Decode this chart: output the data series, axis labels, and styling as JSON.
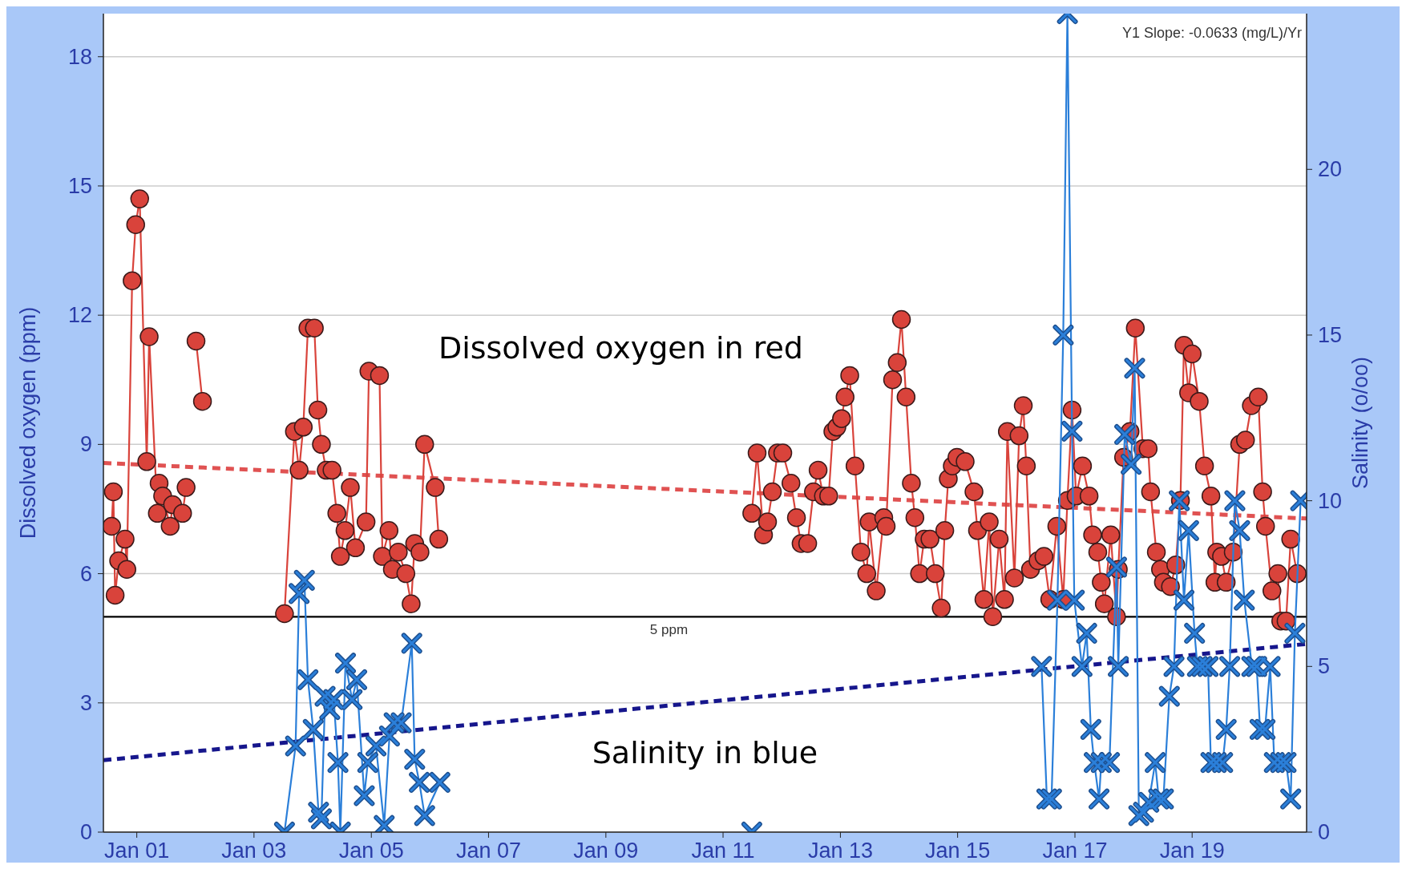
{
  "chart_data": {
    "type": "line",
    "ylabel": "Dissolved oxygen (ppm)",
    "y2label": "Salinity (o/oo)",
    "annotations": [
      "Y1 Slope: -0.0633 (mg/L)/Yr",
      "Dissolved oxygen in red",
      "Salinity in blue"
    ],
    "xlim": [
      "2000-06-07",
      "2020-12-14"
    ],
    "xticks": [
      {
        "value": "2001-01-01",
        "label": "Jan 01"
      },
      {
        "value": "2003-01-01",
        "label": "Jan 03"
      },
      {
        "value": "2005-01-01",
        "label": "Jan 05"
      },
      {
        "value": "2007-01-01",
        "label": "Jan 07"
      },
      {
        "value": "2009-01-01",
        "label": "Jan 09"
      },
      {
        "value": "2011-01-01",
        "label": "Jan 11"
      },
      {
        "value": "2013-01-01",
        "label": "Jan 13"
      },
      {
        "value": "2015-01-01",
        "label": "Jan 15"
      },
      {
        "value": "2017-01-01",
        "label": "Jan 17"
      },
      {
        "value": "2019-01-01",
        "label": "Jan 19"
      }
    ],
    "ylim": [
      0,
      19
    ],
    "yticks": [
      0,
      3,
      6,
      9,
      12,
      15,
      18
    ],
    "y2lim": [
      0,
      24.7
    ],
    "y2ticks": [
      0,
      5,
      10,
      15,
      20
    ],
    "grid": "y",
    "ref_lines": [
      {
        "axis": "y",
        "value": 5,
        "label": "5 ppm",
        "color": "#000000"
      }
    ],
    "series": [
      {
        "color": "#d9433b",
        "marker": "circle",
        "line_style": "solid",
        "x": [
          "2000-07-28",
          "2000-08-08",
          "2000-08-19",
          "2000-09-10",
          "2000-10-20",
          "2000-10-31",
          "2000-12-03",
          "2000-12-25",
          "2001-01-19",
          "2001-03-04",
          "2001-03-19",
          "2001-05-09",
          "2001-05-20",
          "2001-06-11",
          "2001-07-28",
          "2001-08-12",
          "2001-10-13",
          "2001-11-04",
          "2001-12-06",
          "2002-01-05",
          "2002-02-14",
          "2002-10-20",
          "2003-07-10",
          "2003-09-10",
          "2003-10-09",
          "2003-11-04",
          "2003-12-03",
          "2004-01-12",
          "2004-02-03",
          "2004-02-25",
          "2004-03-26",
          "2004-05-01",
          "2004-05-31",
          "2004-06-22",
          "2004-07-21",
          "2004-08-23",
          "2004-09-24",
          "2004-11-29",
          "2004-12-17",
          "2005-02-21",
          "2005-03-11",
          "2005-04-21",
          "2005-05-12",
          "2005-06-18",
          "2005-08-04",
          "2005-09-06",
          "2005-09-28",
          "2005-10-31",
          "2005-11-29",
          "2006-02-03",
          "2006-02-25",
          "2009-01-01",
          "2011-06-29",
          "2011-08-01",
          "2011-09-10",
          "2011-10-05",
          "2011-11-04",
          "2011-12-06",
          "2012-01-08",
          "2012-02-28",
          "2012-04-02",
          "2012-05-01",
          "2012-06-11",
          "2012-07-17",
          "2012-08-15",
          "2012-09-17",
          "2012-10-20",
          "2012-11-15",
          "2012-12-10",
          "2013-01-08",
          "2013-01-30",
          "2013-02-28",
          "2013-04-02",
          "2013-05-09",
          "2013-06-14",
          "2013-06-29",
          "2013-08-12",
          "2013-09-28",
          "2013-10-13",
          "2013-11-22",
          "2013-12-21",
          "2014-01-16",
          "2014-02-14",
          "2014-03-19",
          "2014-04-10",
          "2014-05-09",
          "2014-06-07",
          "2014-07-13",
          "2014-08-15",
          "2014-09-21",
          "2014-10-13",
          "2014-11-04",
          "2014-11-29",
          "2014-12-28",
          "2015-02-17",
          "2015-04-13",
          "2015-05-05",
          "2015-06-14",
          "2015-07-17",
          "2015-08-08",
          "2015-09-17",
          "2015-10-20",
          "2015-11-07",
          "2015-12-21",
          "2016-01-19",
          "2016-02-14",
          "2016-03-04",
          "2016-03-30",
          "2016-05-16",
          "2016-06-22",
          "2016-07-28",
          "2016-09-10",
          "2016-10-20",
          "2016-11-15",
          "2016-12-14",
          "2017-01-08",
          "2017-02-17",
          "2017-03-30",
          "2017-04-21",
          "2017-05-23",
          "2017-06-14",
          "2017-07-03",
          "2017-08-12",
          "2017-09-17",
          "2017-09-28",
          "2017-10-31",
          "2017-12-10",
          "2018-01-12",
          "2018-02-28",
          "2018-04-02",
          "2018-04-17",
          "2018-05-23",
          "2018-06-18",
          "2018-07-06",
          "2018-08-19",
          "2018-09-21",
          "2018-10-20",
          "2018-11-11",
          "2018-12-10",
          "2019-01-01",
          "2019-02-14",
          "2019-03-19",
          "2019-04-28",
          "2019-05-23",
          "2019-06-03",
          "2019-07-03",
          "2019-08-01",
          "2019-09-14",
          "2019-10-24",
          "2019-11-29",
          "2020-01-05",
          "2020-02-17",
          "2020-03-15",
          "2020-04-02",
          "2020-05-12",
          "2020-06-18",
          "2020-07-06",
          "2020-08-08",
          "2020-09-06",
          "2020-10-16"
        ],
        "values": [
          7.1,
          7.9,
          5.5,
          6.3,
          6.8,
          6.1,
          12.8,
          14.1,
          14.7,
          8.6,
          11.5,
          7.4,
          8.1,
          7.8,
          7.1,
          7.6,
          7.4,
          8.0,
          null,
          11.4,
          10.0,
          null,
          5.07,
          9.3,
          8.4,
          9.4,
          11.7,
          11.7,
          9.8,
          9.0,
          8.4,
          8.4,
          7.4,
          6.4,
          7.0,
          8.0,
          6.6,
          7.2,
          10.7,
          10.6,
          6.4,
          7.0,
          6.1,
          6.5,
          6.0,
          5.3,
          6.7,
          6.5,
          9.0,
          8.0,
          6.8,
          null,
          7.4,
          8.8,
          6.9,
          7.2,
          7.9,
          8.8,
          8.8,
          8.1,
          7.3,
          6.7,
          6.7,
          7.9,
          8.4,
          7.8,
          7.8,
          9.3,
          9.4,
          9.6,
          10.1,
          10.6,
          8.5,
          6.5,
          6.0,
          7.2,
          5.6,
          7.3,
          7.1,
          10.5,
          10.9,
          11.9,
          10.1,
          8.1,
          7.3,
          6.0,
          6.8,
          6.8,
          6.0,
          5.2,
          7.0,
          8.2,
          8.5,
          8.7,
          8.6,
          7.9,
          7.0,
          5.4,
          7.2,
          5.0,
          6.8,
          5.4,
          9.3,
          5.9,
          9.2,
          9.9,
          8.5,
          6.1,
          6.3,
          6.4,
          5.4,
          7.1,
          5.4,
          7.7,
          9.8,
          7.8,
          8.5,
          7.8,
          6.9,
          6.5,
          5.8,
          5.3,
          6.9,
          5.0,
          6.1,
          8.7,
          9.3,
          11.7,
          8.9,
          8.9,
          7.9,
          6.5,
          6.1,
          5.8,
          5.7,
          6.2,
          7.7,
          11.3,
          10.2,
          11.1,
          10.0,
          8.5,
          7.8,
          5.8,
          6.5,
          6.4,
          5.8,
          6.5,
          9.0,
          9.1,
          9.9,
          10.1,
          7.9,
          7.1,
          5.6,
          6.0,
          4.9,
          4.9,
          6.8,
          6.0
        ]
      },
      {
        "axis": "y2",
        "color": "#2b7fd9",
        "marker": "cross",
        "line_style": "solid",
        "x": [
          "2003-07-10",
          "2003-09-17",
          "2003-10-09",
          "2003-11-11",
          "2003-12-03",
          "2004-01-05",
          "2004-02-07",
          "2004-02-25",
          "2004-03-19",
          "2004-04-17",
          "2004-05-12",
          "2004-06-07",
          "2004-06-22",
          "2004-07-24",
          "2004-09-03",
          "2004-10-02",
          "2004-11-18",
          "2004-12-10",
          "2005-01-30",
          "2005-03-22",
          "2005-04-24",
          "2005-05-23",
          "2005-07-06",
          "2005-09-10",
          "2005-09-28",
          "2005-10-27",
          "2005-11-29",
          "2006-03-04",
          "2009-01-01",
          "2011-06-29",
          "2014-01-01",
          "2016-06-07",
          "2016-07-10",
          "2016-08-08",
          "2016-09-14",
          "2016-10-20",
          "2016-11-15",
          "2016-12-14",
          "2016-12-28",
          "2017-02-14",
          "2017-03-15",
          "2017-04-10",
          "2017-05-01",
          "2017-05-31",
          "2017-06-14",
          "2017-08-04",
          "2017-09-17",
          "2017-09-28",
          "2017-11-07",
          "2017-12-17",
          "2018-01-08",
          "2018-02-03",
          "2018-03-04",
          "2018-04-06",
          "2018-05-16",
          "2018-06-07",
          "2018-07-06",
          "2018-08-12",
          "2018-09-10",
          "2018-10-13",
          "2018-11-11",
          "2018-12-10",
          "2019-01-16",
          "2019-02-03",
          "2019-03-04",
          "2019-04-10",
          "2019-04-28",
          "2019-05-31",
          "2019-07-10",
          "2019-08-01",
          "2019-08-23",
          "2019-09-24",
          "2019-10-24",
          "2019-11-22",
          "2020-01-08",
          "2020-02-07",
          "2020-02-28",
          "2020-03-30",
          "2020-05-01",
          "2020-05-27",
          "2020-07-06",
          "2020-08-08",
          "2020-09-06",
          "2020-10-02",
          "2020-11-07"
        ],
        "values": [
          0,
          2.6,
          7.2,
          7.6,
          4.6,
          3.1,
          0.6,
          0.4,
          4.1,
          3.7,
          4.0,
          2.1,
          0,
          5.1,
          4.0,
          4.6,
          1.1,
          2.1,
          2.6,
          0.2,
          2.9,
          3.3,
          3.3,
          5.7,
          2.2,
          1.5,
          0.5,
          1.5,
          null,
          0,
          null,
          5.0,
          1.0,
          1.0,
          7.0,
          15.0,
          24.7,
          12.1,
          7.0,
          5.0,
          6.0,
          3.1,
          2.1,
          1.0,
          2.1,
          2.1,
          8.0,
          5.0,
          12.0,
          11.1,
          14.0,
          0.5,
          0.6,
          0.9,
          2.1,
          1.0,
          1.0,
          4.1,
          5.0,
          10.0,
          7.0,
          9.1,
          6.0,
          5.0,
          5.0,
          5.0,
          2.1,
          2.1,
          2.1,
          3.1,
          5.0,
          10.0,
          9.1,
          7.0,
          5.0,
          5.0,
          3.1,
          3.1,
          5.0,
          2.1,
          2.1,
          2.1,
          1.0,
          6.0,
          10.0
        ]
      },
      {
        "color": "#e05252",
        "marker": "none",
        "line_style": "dashed",
        "x": [
          "2000-06-07",
          "2020-12-14"
        ],
        "values": [
          8.57,
          7.28
        ]
      },
      {
        "axis": "y2",
        "color": "#16168c",
        "marker": "none",
        "line_style": "dashed",
        "x": [
          "2000-06-07",
          "2020-12-14"
        ],
        "values": [
          2.17,
          5.68
        ]
      }
    ]
  }
}
